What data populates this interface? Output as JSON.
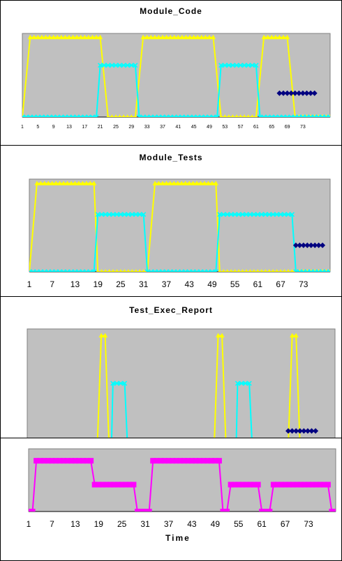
{
  "chart_data": [
    {
      "type": "line",
      "title": "Module_Code",
      "ylim": [
        0,
        1.05
      ],
      "xlim": [
        1,
        80
      ],
      "tick_labels": [
        "1",
        "5",
        "9",
        "13",
        "17",
        "21",
        "25",
        "29",
        "33",
        "37",
        "41",
        "45",
        "49",
        "53",
        "57",
        "61",
        "65",
        "69",
        "73"
      ],
      "series": [
        {
          "color": "#ffff00",
          "marker": "triangle",
          "points": [
            [
              1,
              0
            ],
            [
              3,
              1
            ],
            [
              21,
              1
            ],
            [
              23,
              0
            ],
            [
              30,
              0
            ],
            [
              32,
              1
            ],
            [
              50,
              1
            ],
            [
              52,
              0
            ],
            [
              61,
              0
            ],
            [
              63,
              1
            ],
            [
              69,
              1
            ],
            [
              71,
              0
            ],
            [
              80,
              0
            ]
          ]
        },
        {
          "color": "#00ffff",
          "marker": "x",
          "points": [
            [
              1,
              0
            ],
            [
              20,
              0
            ],
            [
              21,
              0.65
            ],
            [
              30,
              0.65
            ],
            [
              31,
              0
            ],
            [
              51,
              0
            ],
            [
              52,
              0.65
            ],
            [
              61,
              0.65
            ],
            [
              62,
              0
            ],
            [
              80,
              0
            ]
          ]
        },
        {
          "color": "#000080",
          "marker": "diamond",
          "points": [
            [
              67,
              0.3
            ],
            [
              76,
              0.3
            ]
          ]
        }
      ]
    },
    {
      "type": "line",
      "title": "Module_Tests",
      "ylim": [
        0,
        1.05
      ],
      "xlim": [
        1,
        80
      ],
      "tick_labels": [
        "1",
        "7",
        "13",
        "19",
        "25",
        "31",
        "37",
        "43",
        "49",
        "55",
        "61",
        "67",
        "73"
      ],
      "series": [
        {
          "color": "#ffff00",
          "marker": "triangle",
          "points": [
            [
              1,
              0
            ],
            [
              3,
              1
            ],
            [
              18,
              1
            ],
            [
              19,
              0
            ],
            [
              32,
              0
            ],
            [
              34,
              1
            ],
            [
              50,
              1
            ],
            [
              51,
              0
            ],
            [
              69,
              0
            ],
            [
              70,
              0
            ],
            [
              80,
              0
            ]
          ]
        },
        {
          "color": "#00ffff",
          "marker": "x",
          "points": [
            [
              1,
              0
            ],
            [
              18,
              0
            ],
            [
              19,
              0.65
            ],
            [
              31,
              0.65
            ],
            [
              32,
              0
            ],
            [
              50,
              0
            ],
            [
              51,
              0.65
            ],
            [
              70,
              0.65
            ],
            [
              71,
              0
            ],
            [
              80,
              0
            ]
          ]
        },
        {
          "color": "#000080",
          "marker": "diamond",
          "points": [
            [
              71,
              0.3
            ],
            [
              78,
              0.3
            ]
          ]
        }
      ]
    },
    {
      "type": "line",
      "title": "Test_Exec_Report",
      "ylim": [
        0,
        1.05
      ],
      "xlim": [
        1,
        80
      ],
      "tick_labels": [],
      "series": [
        {
          "color": "#ffff00",
          "marker": "triangle",
          "points": [
            [
              18,
              -0.6
            ],
            [
              20,
              1
            ],
            [
              21,
              1
            ],
            [
              23,
              -0.6
            ],
            [
              48,
              -0.6
            ],
            [
              50,
              1
            ],
            [
              51,
              1
            ],
            [
              53,
              -0.6
            ],
            [
              67,
              -0.6
            ],
            [
              69,
              1
            ],
            [
              70,
              1
            ],
            [
              72,
              -0.6
            ]
          ]
        },
        {
          "color": "#00ffff",
          "marker": "x",
          "points": [
            [
              22,
              -0.6
            ],
            [
              23,
              0.65
            ],
            [
              26,
              0.65
            ],
            [
              28,
              -0.6
            ],
            [
              54,
              -0.6
            ],
            [
              55,
              0.65
            ],
            [
              58,
              0.65
            ],
            [
              60,
              -0.6
            ]
          ]
        },
        {
          "color": "#000080",
          "marker": "diamond",
          "points": [
            [
              68,
              0.3
            ],
            [
              75,
              0.3
            ]
          ]
        }
      ]
    },
    {
      "type": "line",
      "title": "",
      "xlabel": "Time",
      "ylim": [
        0,
        1.05
      ],
      "xlim": [
        1,
        80
      ],
      "tick_labels": [
        "1",
        "7",
        "13",
        "19",
        "25",
        "31",
        "37",
        "43",
        "49",
        "55",
        "61",
        "67",
        "73"
      ],
      "series": [
        {
          "color": "#ff00ff",
          "marker": "square",
          "points": [
            [
              1,
              0
            ],
            [
              2,
              0
            ],
            [
              3,
              0.85
            ],
            [
              17,
              0.85
            ],
            [
              18,
              0.45
            ],
            [
              28,
              0.45
            ],
            [
              29,
              0
            ],
            [
              32,
              0
            ],
            [
              33,
              0.85
            ],
            [
              50,
              0.85
            ],
            [
              51,
              0
            ],
            [
              52,
              0
            ],
            [
              53,
              0.45
            ],
            [
              60,
              0.45
            ],
            [
              61,
              0
            ],
            [
              63,
              0
            ],
            [
              64,
              0.45
            ],
            [
              78,
              0.45
            ],
            [
              79,
              0
            ],
            [
              80,
              0
            ]
          ]
        }
      ]
    }
  ]
}
